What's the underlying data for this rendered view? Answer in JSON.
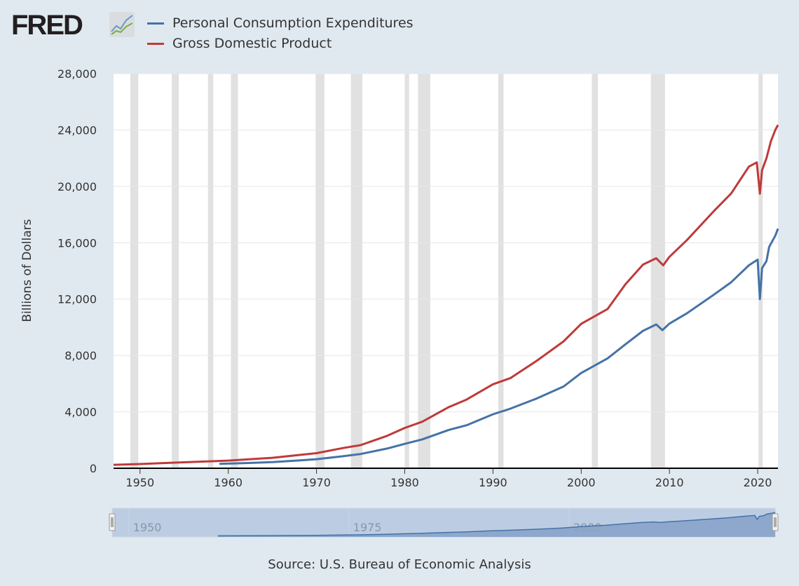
{
  "logo": {
    "text": "FRED",
    "icon": "fred-chart-icon"
  },
  "source": "Source: U.S. Bureau of Economic Analysis",
  "colors": {
    "pce": "#4572a7",
    "gdp": "#bf3a3a",
    "recession": "#e1e1e1",
    "background": "#e1e9f0"
  },
  "chart_data": {
    "type": "line",
    "ylabel": "Billions of Dollars",
    "ylim": [
      0,
      28000
    ],
    "xlim": [
      1947,
      2022.3
    ],
    "yticks": [
      "0",
      "4,000",
      "8,000",
      "12,000",
      "16,000",
      "20,000",
      "24,000",
      "28,000"
    ],
    "ytick_values": [
      0,
      4000,
      8000,
      12000,
      16000,
      20000,
      24000,
      28000
    ],
    "xticks": [
      "1950",
      "1960",
      "1970",
      "1980",
      "1990",
      "2000",
      "2010",
      "2020"
    ],
    "xtick_values": [
      1950,
      1960,
      1970,
      1980,
      1990,
      2000,
      2010,
      2020
    ],
    "grid": true,
    "legend": "top-left",
    "recessions": [
      [
        1948.9,
        1949.8
      ],
      [
        1953.6,
        1954.4
      ],
      [
        1957.7,
        1958.3
      ],
      [
        1960.3,
        1961.1
      ],
      [
        1969.9,
        1970.9
      ],
      [
        1973.9,
        1975.2
      ],
      [
        1980.0,
        1980.5
      ],
      [
        1981.5,
        1982.9
      ],
      [
        1990.6,
        1991.2
      ],
      [
        2001.2,
        2001.9
      ],
      [
        2007.9,
        2009.5
      ],
      [
        2020.1,
        2020.3
      ]
    ],
    "series": [
      {
        "name": "Personal Consumption Expenditures",
        "color": "#4572a7",
        "x": [
          1959,
          1962,
          1965,
          1968,
          1970,
          1973,
          1975,
          1978,
          1980,
          1982,
          1985,
          1987,
          1990,
          1992,
          1995,
          1998,
          2000,
          2001,
          2003,
          2005,
          2007,
          2008.5,
          2009.2,
          2010,
          2012,
          2015,
          2017,
          2019,
          2020.0,
          2020.25,
          2020.5,
          2021,
          2021.3,
          2022,
          2022.3
        ],
        "values": [
          310,
          370,
          440,
          550,
          640,
          850,
          1010,
          1400,
          1730,
          2050,
          2720,
          3050,
          3830,
          4230,
          4960,
          5800,
          6760,
          7100,
          7800,
          8790,
          9750,
          10200,
          9800,
          10260,
          11000,
          12300,
          13200,
          14400,
          14800,
          12000,
          14200,
          14700,
          15700,
          16500,
          17000
        ]
      },
      {
        "name": "Gross Domestic Product",
        "color": "#bf3a3a",
        "x": [
          1947,
          1950,
          1955,
          1960,
          1965,
          1968,
          1970,
          1973,
          1975,
          1978,
          1980,
          1982,
          1985,
          1987,
          1990,
          1992,
          1995,
          1998,
          2000,
          2001,
          2003,
          2005,
          2007,
          2008.5,
          2009.3,
          2010,
          2012,
          2015,
          2017,
          2019,
          2019.9,
          2020.25,
          2020.5,
          2021,
          2021.5,
          2022,
          2022.3
        ],
        "values": [
          243,
          300,
          425,
          540,
          740,
          940,
          1070,
          1430,
          1640,
          2300,
          2860,
          3300,
          4340,
          4870,
          5960,
          6400,
          7640,
          9000,
          10250,
          10600,
          11300,
          13040,
          14450,
          14900,
          14400,
          15000,
          16200,
          18220,
          19500,
          21400,
          21700,
          19480,
          21140,
          22000,
          23200,
          24000,
          24350
        ]
      }
    ]
  }
}
